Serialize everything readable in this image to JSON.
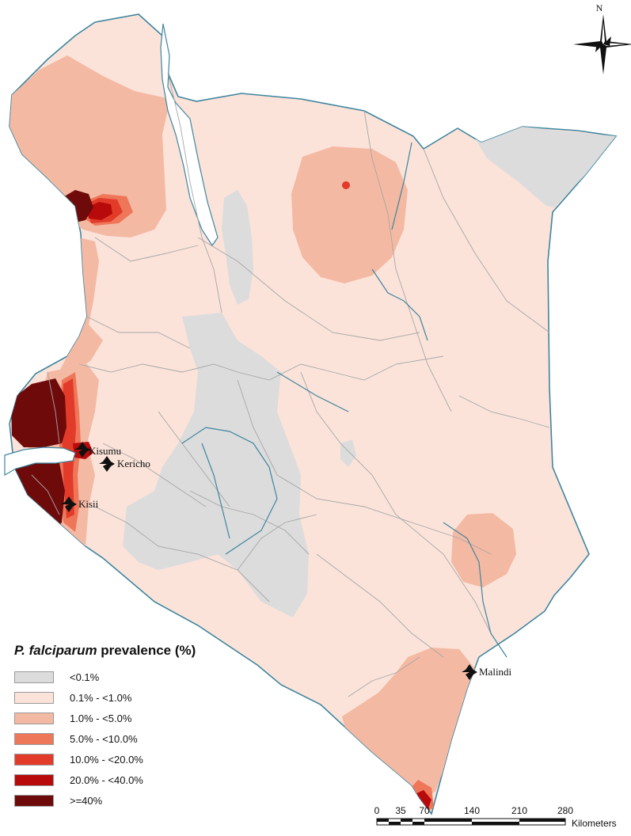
{
  "legend": {
    "title_italic": "P. falciparum",
    "title_rest": " prevalence (%)",
    "classes": [
      {
        "label": "<0.1%",
        "color": "#dcdcdc"
      },
      {
        "label": "0.1% - <1.0%",
        "color": "#fbe3d9"
      },
      {
        "label": "1.0% - <5.0%",
        "color": "#f4b9a3"
      },
      {
        "label": "5.0% - <10.0%",
        "color": "#ee7659"
      },
      {
        "label": "10.0% - <20.0%",
        "color": "#e23b2a"
      },
      {
        "label": "20.0% - <40.0%",
        "color": "#b80a0a"
      },
      {
        "label": ">=40%",
        "color": "#6e0a0a"
      }
    ]
  },
  "cities": [
    {
      "name": "Kisumu"
    },
    {
      "name": "Kericho"
    },
    {
      "name": "Kisii"
    },
    {
      "name": "Malindi"
    }
  ],
  "north_arrow": {
    "label": "N"
  },
  "scale_bar": {
    "ticks": [
      "0",
      "35",
      "70",
      "140",
      "210",
      "280"
    ],
    "unit": "Kilometers"
  },
  "colors": {
    "water": "#3d85a0",
    "boundary": "#a7a7a7"
  }
}
